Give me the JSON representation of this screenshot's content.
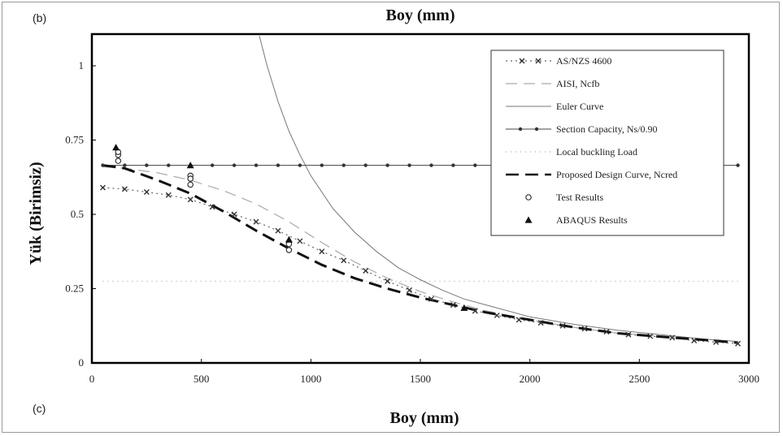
{
  "panel_top_tag": "(b)",
  "panel_bottom_tag": "(c)",
  "chart_data": {
    "type": "line",
    "title": "Boy (mm)",
    "xlabel": "Boy (mm)",
    "ylabel": "Yük (Birimsiz)",
    "xlim": [
      0,
      3000
    ],
    "ylim": [
      0,
      1.1
    ],
    "x_ticks": [
      0,
      500,
      1000,
      1500,
      2000,
      2500,
      3000
    ],
    "y_ticks": [
      0,
      0.25,
      0.5,
      0.75,
      1
    ],
    "y_tick_labels": [
      "0",
      "0.25",
      "0.5",
      "0.75",
      "1"
    ],
    "grid": false,
    "legend_position": "top-right",
    "series": [
      {
        "name": "AS/NZS 4600",
        "style": "dotted-cross",
        "color": "#333333",
        "x": [
          50,
          150,
          250,
          350,
          450,
          550,
          650,
          750,
          850,
          950,
          1050,
          1150,
          1250,
          1350,
          1450,
          1550,
          1650,
          1750,
          1850,
          1950,
          2050,
          2150,
          2250,
          2350,
          2450,
          2550,
          2650,
          2750,
          2850,
          2950
        ],
        "y": [
          0.59,
          0.585,
          0.575,
          0.565,
          0.55,
          0.525,
          0.5,
          0.475,
          0.445,
          0.41,
          0.375,
          0.345,
          0.31,
          0.275,
          0.245,
          0.215,
          0.195,
          0.175,
          0.16,
          0.145,
          0.135,
          0.125,
          0.115,
          0.105,
          0.095,
          0.09,
          0.085,
          0.075,
          0.07,
          0.065
        ]
      },
      {
        "name": "AISI, Ncfb",
        "style": "long-dash",
        "color": "#999999",
        "x": [
          50,
          150,
          300,
          450,
          600,
          750,
          900,
          1050,
          1200,
          1350,
          1500,
          1650,
          1800,
          2000,
          2200,
          2400,
          2600,
          2800,
          2950
        ],
        "y": [
          0.66,
          0.655,
          0.64,
          0.615,
          0.58,
          0.535,
          0.475,
          0.405,
          0.34,
          0.285,
          0.24,
          0.205,
          0.175,
          0.145,
          0.12,
          0.1,
          0.09,
          0.078,
          0.07
        ]
      },
      {
        "name": "Euler Curve",
        "style": "solid-thin",
        "color": "#777777",
        "x": [
          765,
          800,
          850,
          900,
          950,
          1000,
          1100,
          1200,
          1300,
          1400,
          1500,
          1600,
          1700,
          1800,
          2000,
          2200,
          2400,
          2600,
          2800,
          2950
        ],
        "y": [
          1.1,
          1.0,
          0.88,
          0.78,
          0.7,
          0.63,
          0.52,
          0.44,
          0.375,
          0.32,
          0.28,
          0.245,
          0.215,
          0.195,
          0.155,
          0.13,
          0.11,
          0.095,
          0.08,
          0.072
        ]
      },
      {
        "name": "Section Capacity, Ns/0.90",
        "style": "solid-dot",
        "color": "#333333",
        "x": [
          50,
          150,
          250,
          350,
          450,
          550,
          650,
          750,
          850,
          950,
          1050,
          1150,
          1250,
          1350,
          1450,
          1550,
          1650,
          1750,
          1850,
          1950,
          2050,
          2150,
          2250,
          2350,
          2450,
          2550,
          2650,
          2750,
          2850,
          2950
        ],
        "y": [
          0.665,
          0.665,
          0.665,
          0.665,
          0.665,
          0.665,
          0.665,
          0.665,
          0.665,
          0.665,
          0.665,
          0.665,
          0.665,
          0.665,
          0.665,
          0.665,
          0.665,
          0.665,
          0.665,
          0.665,
          0.665,
          0.665,
          0.665,
          0.665,
          0.665,
          0.665,
          0.665,
          0.665,
          0.665,
          0.665
        ]
      },
      {
        "name": "Local buckling Load",
        "style": "fine-dot",
        "color": "#aaaaaa",
        "x": [
          50,
          2950
        ],
        "y": [
          0.275,
          0.275
        ]
      },
      {
        "name": "Proposed Design Curve, Ncred",
        "style": "heavy-dash",
        "color": "#111111",
        "x": [
          50,
          150,
          300,
          450,
          600,
          750,
          900,
          1050,
          1200,
          1350,
          1500,
          1650,
          1800,
          2000,
          2200,
          2400,
          2600,
          2800,
          2950
        ],
        "y": [
          0.665,
          0.655,
          0.615,
          0.57,
          0.51,
          0.445,
          0.385,
          0.33,
          0.285,
          0.25,
          0.22,
          0.195,
          0.17,
          0.145,
          0.12,
          0.1,
          0.088,
          0.077,
          0.068
        ]
      },
      {
        "name": "Test Results",
        "style": "circle-marker",
        "color": "#333333",
        "x": [
          120,
          120,
          120,
          450,
          450,
          450,
          900,
          900
        ],
        "y": [
          0.7,
          0.68,
          0.71,
          0.6,
          0.63,
          0.62,
          0.38,
          0.4
        ]
      },
      {
        "name": "ABAQUS Results",
        "style": "triangle-marker",
        "color": "#111111",
        "x": [
          110,
          450,
          900,
          1700
        ],
        "y": [
          0.725,
          0.665,
          0.415,
          0.185
        ]
      }
    ]
  }
}
